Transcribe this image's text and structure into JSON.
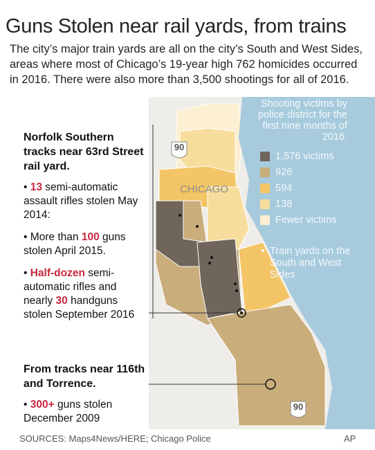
{
  "title": "Guns Stolen near rail yards, from trains",
  "intro": "The city’s major train yards are all on the city’s South and West Sides, areas where most of Chicago’s 19-year high 762 homicides occurred in 2016. There were also more than 3,500 shootings for all of 2016.",
  "legend": {
    "title": "Shooting victims by police district for the first nine months of 2016.",
    "items": [
      {
        "label": "1,576 victims",
        "color": "#6f655b"
      },
      {
        "label": "926",
        "color": "#c9ad7b"
      },
      {
        "label": "594",
        "color": "#f3c566"
      },
      {
        "label": "138",
        "color": "#f7dd9c"
      },
      {
        "label": "Fewer victims",
        "color": "#fcefd2"
      }
    ]
  },
  "map_labels": {
    "city": "CHICAGO",
    "highway_north": "90",
    "highway_south": "90",
    "train_yards": "Train yards on the South and West Sides"
  },
  "callouts": [
    {
      "heading": "Norfolk Southern tracks near 63rd Street rail yard.",
      "bullets": [
        [
          "13",
          " semi-automatic assault rifles stolen May 2014:"
        ],
        [
          "More than ",
          "100",
          " guns stolen April 2015."
        ],
        [
          "Half-dozen",
          " semi-automatic rifles and nearly ",
          "30",
          " handguns stolen September 2016"
        ]
      ]
    },
    {
      "heading": "From tracks near 116th and Torrence.",
      "bullets": [
        [
          "300+",
          " guns stolen December 2009"
        ]
      ]
    }
  ],
  "footer": {
    "sources": "SOURCES: Maps4News/HERE; Chicago Police",
    "credit": "AP"
  }
}
